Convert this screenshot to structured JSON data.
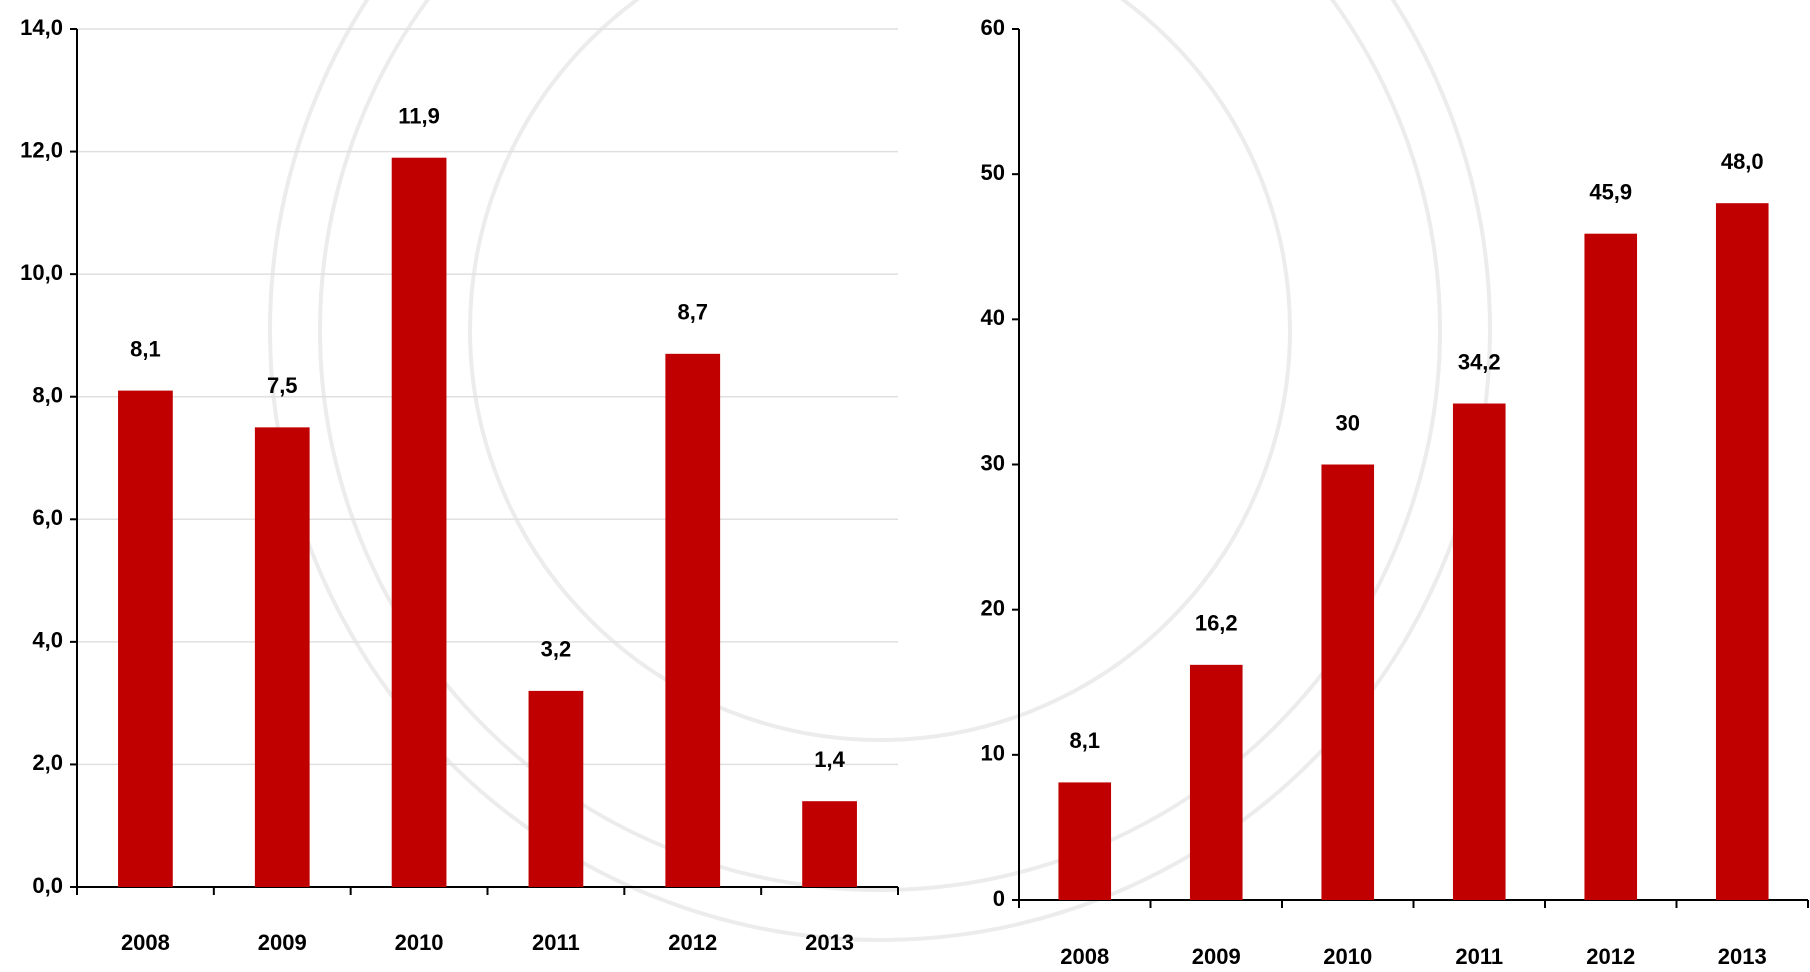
{
  "chart_data": [
    {
      "type": "bar",
      "categories": [
        "2008",
        "2009",
        "2010",
        "2011",
        "2012",
        "2013"
      ],
      "values": [
        8.1,
        7.5,
        11.9,
        3.2,
        8.7,
        1.4
      ],
      "value_labels": [
        "8,1",
        "7,5",
        "11,9",
        "3,2",
        "8,7",
        "1,4"
      ],
      "color": "#c00000",
      "ylim": [
        0,
        14
      ],
      "yticks": [
        {
          "value": 0,
          "label": "0,0"
        },
        {
          "value": 2,
          "label": "2,0"
        },
        {
          "value": 4,
          "label": "4,0"
        },
        {
          "value": 6,
          "label": "6,0"
        },
        {
          "value": 8,
          "label": "8,0"
        },
        {
          "value": 10,
          "label": "10,0"
        },
        {
          "value": 12,
          "label": "12,0"
        },
        {
          "value": 14,
          "label": "14,0"
        }
      ],
      "grid": true
    },
    {
      "type": "bar",
      "categories": [
        "2008",
        "2009",
        "2010",
        "2011",
        "2012",
        "2013"
      ],
      "values": [
        8.1,
        16.2,
        30,
        34.2,
        45.9,
        48.0
      ],
      "value_labels": [
        "8,1",
        "16,2",
        "30",
        "34,2",
        "45,9",
        "48,0"
      ],
      "color": "#c00000",
      "ylim": [
        0,
        60
      ],
      "yticks": [
        0,
        10,
        20,
        30,
        40,
        50,
        60
      ],
      "grid": false
    }
  ]
}
